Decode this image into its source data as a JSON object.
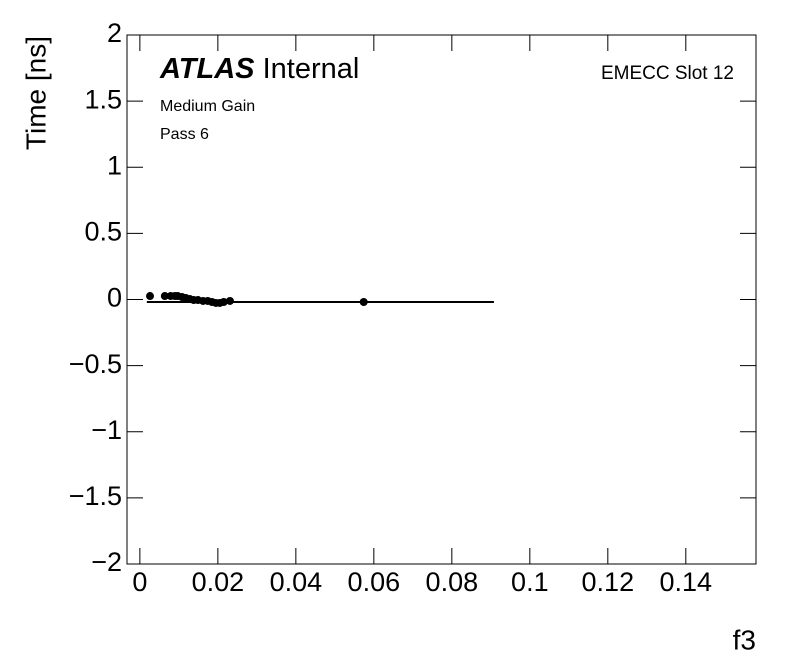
{
  "chart_data": {
    "type": "scatter",
    "label_bold": "ATLAS",
    "label_rest": "Internal",
    "annotations": [
      "Medium Gain",
      "Pass 6"
    ],
    "corner_text": "EMECC Slot 12",
    "ylabel": "Time [ns]",
    "xlabel": "f3",
    "xlim": [
      -0.0033,
      0.158
    ],
    "ylim": [
      -2,
      2
    ],
    "xticks": [
      0,
      0.02,
      0.04,
      0.06,
      0.08,
      0.1,
      0.12,
      0.14
    ],
    "yticks": [
      {
        "value": -2,
        "label": "−2"
      },
      {
        "value": -1.5,
        "label": "−1.5"
      },
      {
        "value": -1,
        "label": "−1"
      },
      {
        "value": -0.5,
        "label": "−0.5"
      },
      0,
      0.5,
      1,
      1.5,
      2
    ],
    "color": "#000000",
    "x": [
      0.0026,
      0.0064,
      0.0079,
      0.009,
      0.0097,
      0.0108,
      0.0118,
      0.0128,
      0.0138,
      0.0149,
      0.0162,
      0.0174,
      0.0185,
      0.0195,
      0.0205,
      0.0215,
      0.0231,
      0.0574
    ],
    "values": [
      0.026,
      0.026,
      0.026,
      0.026,
      0.026,
      0.019,
      0.011,
      0.004,
      -0.004,
      -0.004,
      -0.011,
      -0.011,
      -0.019,
      -0.026,
      -0.026,
      -0.019,
      -0.011,
      -0.019
    ],
    "fit": {
      "x": [
        0.0018,
        0.0908
      ],
      "values": [
        -0.019,
        -0.019
      ]
    }
  }
}
